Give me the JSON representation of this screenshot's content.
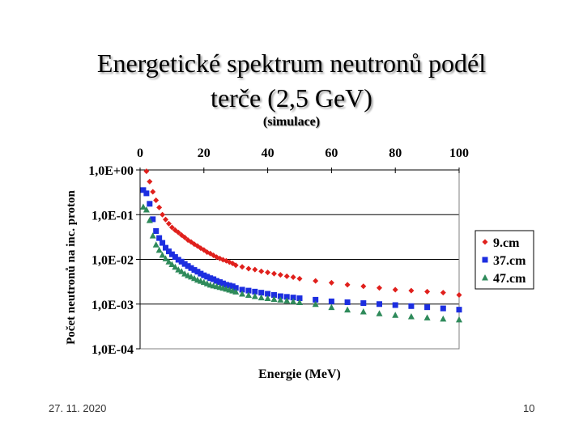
{
  "slide": {
    "title_line1": "Energetické spektrum neutronů podél",
    "title_line2": "terče (2,5 GeV)",
    "subtitle": "(simulace)",
    "date": "27. 11. 2020",
    "page_number": "10"
  },
  "chart_data": {
    "type": "scatter",
    "title": "(simulace)",
    "xlabel": "Energie (MeV)",
    "ylabel": "Počet neutronů na inc. proton",
    "xlim": [
      0,
      100
    ],
    "y_log": true,
    "ylim_exponent": [
      -4,
      0
    ],
    "x_ticks": [
      "0",
      "20",
      "40",
      "60",
      "80",
      "100"
    ],
    "x_tick_values": [
      0,
      20,
      40,
      60,
      80,
      100
    ],
    "y_ticks": [
      "1,0E+00",
      "1,0E-01",
      "1,0E-02",
      "1,0E-03",
      "1,0E-04"
    ],
    "y_tick_exponents": [
      0,
      -1,
      -2,
      -3,
      -4
    ],
    "legend_position": "right",
    "x_axis_position": "top",
    "series": [
      {
        "name": "9.cm",
        "marker": "diamond",
        "color": "#e0201c",
        "x": [
          2,
          3,
          4,
          5,
          6,
          7,
          8,
          9,
          10,
          11,
          12,
          13,
          14,
          15,
          16,
          17,
          18,
          19,
          20,
          21,
          22,
          23,
          24,
          25,
          26,
          27,
          28,
          29,
          30,
          32,
          34,
          36,
          38,
          40,
          42,
          44,
          46,
          48,
          50,
          55,
          60,
          65,
          70,
          75,
          80,
          85,
          90,
          95,
          100
        ],
        "y": [
          0.933,
          0.55,
          0.324,
          0.21,
          0.145,
          0.1,
          0.078,
          0.063,
          0.052,
          0.045,
          0.04,
          0.035,
          0.031,
          0.027,
          0.0245,
          0.0219,
          0.0199,
          0.0178,
          0.0162,
          0.0145,
          0.0135,
          0.0123,
          0.0112,
          0.0105,
          0.0098,
          0.0093,
          0.0087,
          0.0081,
          0.0074,
          0.0068,
          0.0062,
          0.0059,
          0.0054,
          0.0051,
          0.0048,
          0.0045,
          0.0042,
          0.004,
          0.0037,
          0.0033,
          0.003,
          0.0027,
          0.0025,
          0.0023,
          0.0021,
          0.002,
          0.0019,
          0.0018,
          0.0016
        ]
      },
      {
        "name": "37.cm",
        "marker": "square",
        "color": "#1c2ee0",
        "x": [
          1,
          2,
          3,
          4,
          5,
          6,
          7,
          8,
          9,
          10,
          11,
          12,
          13,
          14,
          15,
          16,
          17,
          18,
          19,
          20,
          21,
          22,
          23,
          24,
          25,
          26,
          27,
          28,
          29,
          30,
          32,
          34,
          36,
          38,
          40,
          42,
          44,
          46,
          48,
          50,
          55,
          60,
          65,
          70,
          75,
          80,
          85,
          90,
          95,
          100
        ],
        "y": [
          0.355,
          0.3,
          0.175,
          0.079,
          0.043,
          0.03,
          0.0234,
          0.0182,
          0.0151,
          0.013,
          0.0113,
          0.0098,
          0.0089,
          0.0079,
          0.0071,
          0.0064,
          0.0058,
          0.0053,
          0.0048,
          0.0044,
          0.0041,
          0.0038,
          0.0036,
          0.0033,
          0.0031,
          0.0029,
          0.0027,
          0.0026,
          0.0025,
          0.0023,
          0.0021,
          0.002,
          0.0019,
          0.0018,
          0.0017,
          0.0016,
          0.0015,
          0.00145,
          0.0014,
          0.00135,
          0.00125,
          0.00115,
          0.0011,
          0.00105,
          0.001,
          0.00095,
          0.0009,
          0.00085,
          0.0008,
          0.00075
        ]
      },
      {
        "name": "47.cm",
        "marker": "triangle",
        "color": "#2e8a5a",
        "x": [
          1,
          2,
          3,
          4,
          5,
          6,
          7,
          8,
          9,
          10,
          11,
          12,
          13,
          14,
          15,
          16,
          17,
          18,
          19,
          20,
          21,
          22,
          23,
          24,
          25,
          26,
          27,
          28,
          29,
          30,
          32,
          34,
          36,
          38,
          40,
          42,
          44,
          46,
          48,
          50,
          55,
          60,
          65,
          70,
          75,
          80,
          85,
          90,
          95,
          100
        ],
        "y": [
          0.15,
          0.13,
          0.075,
          0.034,
          0.0214,
          0.0162,
          0.0126,
          0.0105,
          0.0089,
          0.0078,
          0.0068,
          0.0059,
          0.0054,
          0.0048,
          0.0044,
          0.0041,
          0.0038,
          0.0035,
          0.0033,
          0.0031,
          0.0029,
          0.0027,
          0.0026,
          0.0025,
          0.0024,
          0.0023,
          0.0022,
          0.0021,
          0.002,
          0.0019,
          0.0017,
          0.0016,
          0.0015,
          0.0014,
          0.00135,
          0.0013,
          0.00125,
          0.0012,
          0.00115,
          0.0011,
          0.001,
          0.00085,
          0.00075,
          0.00068,
          0.00062,
          0.00057,
          0.00053,
          0.0005,
          0.00047,
          0.00045
        ]
      }
    ]
  }
}
